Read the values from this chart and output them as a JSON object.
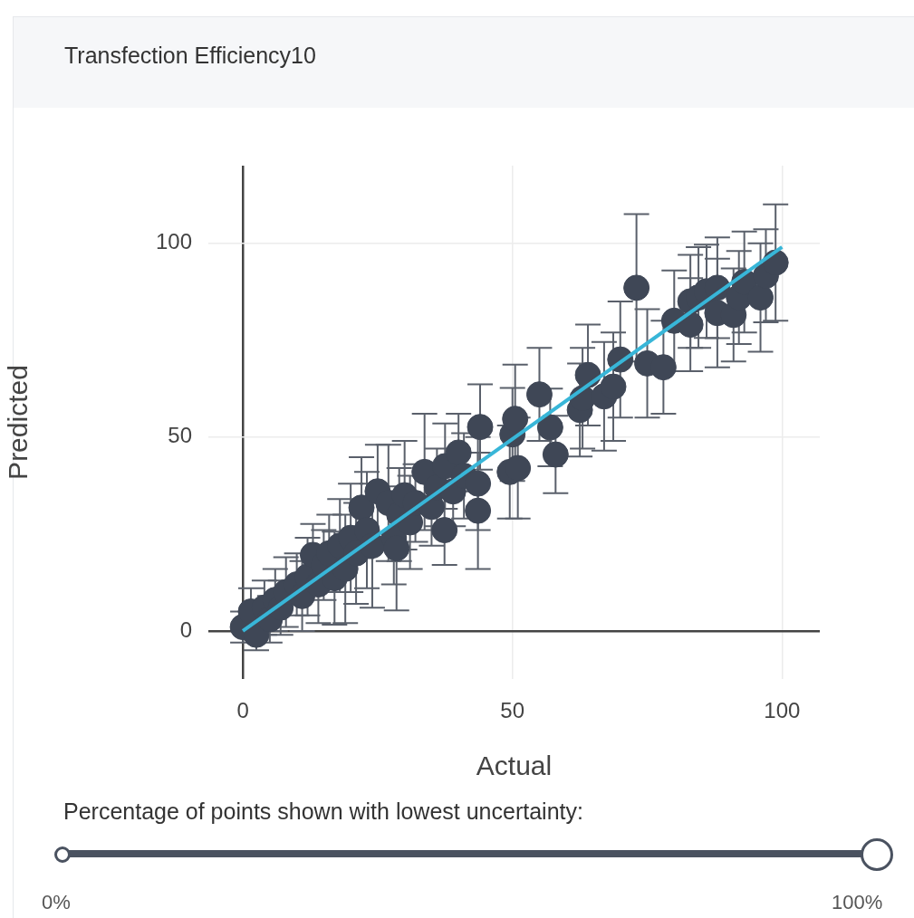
{
  "chart_data": {
    "type": "scatter",
    "title": "Transfection Efficiency10",
    "xlabel": "Actual",
    "ylabel": "Predicted",
    "xlim": [
      -6.4,
      107
    ],
    "ylim": [
      -12.4,
      120
    ],
    "xticks": [
      0,
      50,
      100
    ],
    "yticks": [
      0,
      50,
      100
    ],
    "grid": true,
    "legend": false,
    "annotations": [
      "Percentage of points shown with lowest uncertainty:",
      "0%",
      "100%"
    ],
    "series": [
      {
        "color": "#3f4756",
        "marker": "circle",
        "x": [
          0,
          1.5,
          2.5,
          4,
          5,
          6,
          7,
          8,
          10,
          11,
          12,
          13,
          14,
          15,
          16,
          17,
          18,
          19,
          20,
          21,
          22,
          23,
          24,
          25,
          27,
          28,
          28.5,
          29,
          30,
          31,
          32,
          33.7,
          35,
          36,
          37.4,
          37.5,
          39,
          40,
          41,
          43.6,
          43.6,
          44,
          49.5,
          50,
          50.5,
          51,
          55,
          57,
          58,
          62.5,
          63,
          64,
          67,
          68.7,
          70,
          73,
          75,
          78,
          80,
          83,
          83,
          84.5,
          86,
          88,
          88,
          91,
          92,
          93,
          96,
          97,
          98.8
        ],
        "values": [
          1,
          5,
          -1,
          6,
          3,
          8,
          6,
          10,
          12,
          9,
          14,
          19.6,
          12,
          17,
          20,
          13.6,
          22,
          16,
          24,
          20,
          31.8,
          26,
          22,
          36,
          33,
          24,
          21.3,
          30,
          35,
          28,
          33,
          41,
          32,
          37,
          26,
          42.5,
          36,
          46,
          40,
          38,
          31,
          52.6,
          41,
          50.7,
          54.7,
          42,
          61,
          52.5,
          45.5,
          57,
          60,
          66,
          60.5,
          63,
          70,
          88.5,
          69,
          68,
          80,
          85,
          79,
          86,
          87.6,
          88.5,
          82,
          81.5,
          86,
          90,
          86,
          91.6,
          95
        ],
        "errors": [
          4,
          6,
          4,
          7,
          6,
          8,
          7,
          9,
          8,
          9,
          10,
          8,
          10,
          9,
          10,
          12,
          12,
          14,
          14,
          13,
          13,
          15,
          16,
          12,
          15,
          12,
          16,
          12,
          14,
          12,
          10,
          15,
          10,
          10,
          9,
          11,
          9,
          10,
          11,
          12,
          15,
          11,
          12,
          12,
          14,
          13,
          12,
          10,
          10,
          12,
          13,
          13,
          14,
          14,
          15,
          19,
          14,
          12,
          13,
          12,
          12,
          13,
          12,
          13,
          14,
          12,
          12,
          13,
          14,
          12,
          15
        ]
      },
      {
        "type": "line",
        "color": "#38b6d8",
        "x": [
          0,
          100
        ],
        "values": [
          0,
          99
        ]
      }
    ]
  }
}
